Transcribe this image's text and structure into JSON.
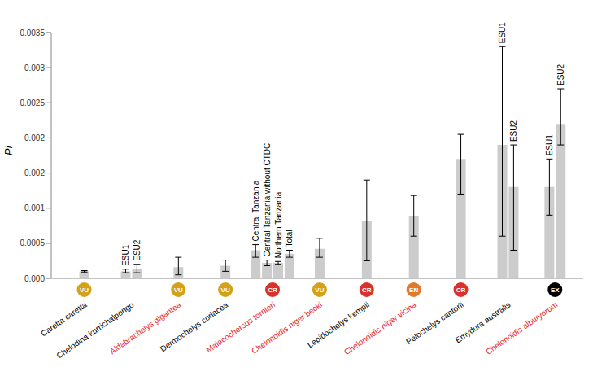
{
  "chart_data": {
    "type": "bar",
    "y_label": "Pi",
    "color": "#cccccc",
    "grid": false,
    "ylim": [
      0,
      0.0035
    ],
    "yticks": [
      {
        "value": 0,
        "label": "0.000"
      },
      0.0005,
      0.001,
      {
        "value": 0.0015,
        "label": "0.002"
      },
      0.002,
      0.0025,
      0.003,
      0.0035
    ],
    "groups": [
      {
        "name": "Caretta caretta",
        "name_color": "#000000",
        "status": "VU",
        "status_color": "#d4a21a",
        "bars": [
          {
            "label": null,
            "value": 0.0001,
            "error": [
              9e-05,
              0.00011
            ]
          }
        ]
      },
      {
        "name": "Chelodina kurrichalpongo",
        "name_color": "#000000",
        "status": null,
        "status_color": null,
        "bars": [
          {
            "label": "ESU1",
            "value": 0.0001,
            "error": [
              8e-05,
              0.00013
            ]
          },
          {
            "label": "ESU2",
            "value": 0.00013,
            "error": [
              8e-05,
              0.0002
            ]
          }
        ]
      },
      {
        "name": "Aldabrachelys gigantea",
        "name_color": "#e8212b",
        "status": "VU",
        "status_color": "#d4a21a",
        "bars": [
          {
            "label": null,
            "value": 0.00016,
            "error": [
              5e-05,
              0.0003
            ]
          }
        ]
      },
      {
        "name": "Dermochelys coriacea",
        "name_color": "#000000",
        "status": "VU",
        "status_color": "#d4a21a",
        "bars": [
          {
            "label": null,
            "value": 0.00018,
            "error": [
              0.0001,
              0.00026
            ]
          }
        ]
      },
      {
        "name": "Malacochersus tornieri",
        "name_color": "#e8212b",
        "status": "CR",
        "status_color": "#d9312b",
        "bars": [
          {
            "label": "Central Tanzania",
            "value": 0.0004,
            "error": [
              0.0003,
              0.00048
            ]
          },
          {
            "label": "Central Tanzania without CTDC",
            "value": 0.00022,
            "error": [
              0.00018,
              0.00026
            ]
          },
          {
            "label": "Northern Tanzania",
            "value": 0.00022,
            "error": [
              0.0002,
              0.00024
            ]
          },
          {
            "label": "Total",
            "value": 0.00035,
            "error": [
              0.0003,
              0.0004
            ]
          }
        ]
      },
      {
        "name": "Chelonoidis niger becki",
        "name_color": "#e8212b",
        "status": "VU",
        "status_color": "#d4a21a",
        "bars": [
          {
            "label": null,
            "value": 0.00042,
            "error": [
              0.0003,
              0.00057
            ]
          }
        ]
      },
      {
        "name": "Lepidochelys kempii",
        "name_color": "#000000",
        "status": "CR",
        "status_color": "#d9312b",
        "bars": [
          {
            "label": null,
            "value": 0.00082,
            "error": [
              0.00025,
              0.0014
            ]
          }
        ]
      },
      {
        "name": "Chelonoidis niger vicina",
        "name_color": "#e8212b",
        "status": "EN",
        "status_color": "#e07a2c",
        "bars": [
          {
            "label": null,
            "value": 0.00088,
            "error": [
              0.0006,
              0.00118
            ]
          }
        ]
      },
      {
        "name": "Pelochelys cantorii",
        "name_color": "#000000",
        "status": "CR",
        "status_color": "#d9312b",
        "bars": [
          {
            "label": null,
            "value": 0.0017,
            "error": [
              0.0012,
              0.00205
            ]
          }
        ]
      },
      {
        "name": "Emydura australis",
        "name_color": "#000000",
        "status": null,
        "status_color": null,
        "bars": [
          {
            "label": "ESU1",
            "value": 0.0019,
            "error": [
              0.0006,
              0.0033
            ]
          },
          {
            "label": "ESU2",
            "value": 0.0013,
            "error": [
              0.0004,
              0.0019
            ]
          }
        ]
      },
      {
        "name": "Chelonoidis alburyorum",
        "name_color": "#e8212b",
        "status": "EX",
        "status_color": "#000000",
        "bars": [
          {
            "label": "ESU1",
            "value": 0.0013,
            "error": [
              0.0009,
              0.0017
            ]
          },
          {
            "label": "ESU2",
            "value": 0.0022,
            "error": [
              0.0019,
              0.0027
            ]
          }
        ]
      }
    ]
  }
}
